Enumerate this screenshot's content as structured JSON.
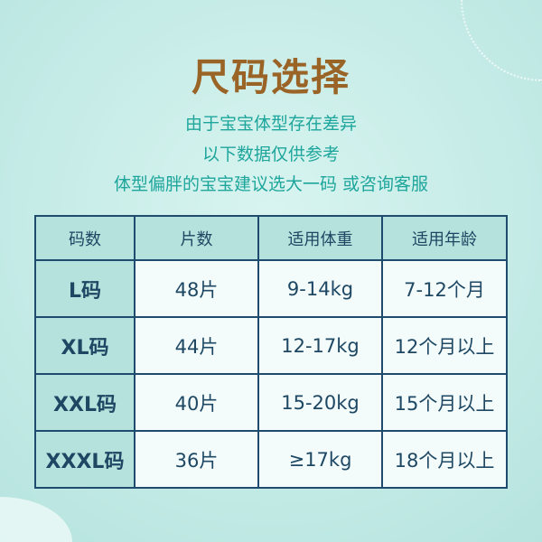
{
  "title": "尺码选择",
  "subtitle": [
    "由于宝宝体型存在差异",
    "以下数据仅供参考",
    "体型偏胖的宝宝建议选大一码  或咨询客服"
  ],
  "table": {
    "headers": [
      "码数",
      "片数",
      "适用体重",
      "适用年龄"
    ],
    "rows": [
      [
        "L码",
        "48片",
        "9-14kg",
        "7-12个月"
      ],
      [
        "XL码",
        "44片",
        "12-17kg",
        "12个月以上"
      ],
      [
        "XXL码",
        "40片",
        "15-20kg",
        "15个月以上"
      ],
      [
        "XXXL码",
        "36片",
        "≥17kg",
        "18个月以上"
      ]
    ]
  }
}
